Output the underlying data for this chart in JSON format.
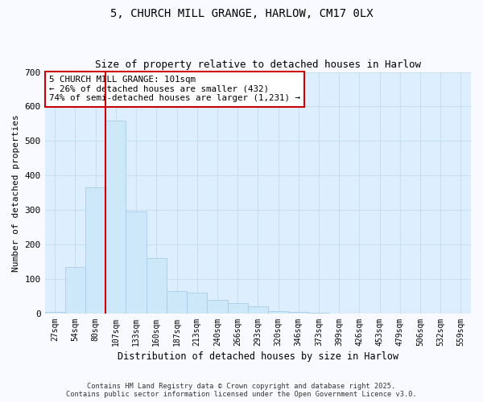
{
  "title_line1": "5, CHURCH MILL GRANGE, HARLOW, CM17 0LX",
  "title_line2": "Size of property relative to detached houses in Harlow",
  "xlabel": "Distribution of detached houses by size in Harlow",
  "ylabel": "Number of detached properties",
  "bin_labels": [
    "27sqm",
    "54sqm",
    "80sqm",
    "107sqm",
    "133sqm",
    "160sqm",
    "187sqm",
    "213sqm",
    "240sqm",
    "266sqm",
    "293sqm",
    "320sqm",
    "346sqm",
    "373sqm",
    "399sqm",
    "426sqm",
    "453sqm",
    "479sqm",
    "506sqm",
    "532sqm",
    "559sqm"
  ],
  "bar_values": [
    5,
    135,
    365,
    560,
    295,
    160,
    65,
    60,
    40,
    30,
    20,
    8,
    5,
    2,
    0,
    0,
    0,
    0,
    0,
    0,
    0
  ],
  "bar_color": "#cde8f8",
  "bar_edge_color": "#aacce8",
  "red_line_color": "#cc0000",
  "red_line_index": 2.5,
  "annotation_text": "5 CHURCH MILL GRANGE: 101sqm\n← 26% of detached houses are smaller (432)\n74% of semi-detached houses are larger (1,231) →",
  "annotation_box_color": "#ffffff",
  "annotation_box_edge": "#cc0000",
  "ylim": [
    0,
    700
  ],
  "yticks": [
    0,
    100,
    200,
    300,
    400,
    500,
    600,
    700
  ],
  "fig_bg": "#f8faff",
  "plot_bg": "#ddeeff",
  "grid_color": "#c8dff0",
  "footer_line1": "Contains HM Land Registry data © Crown copyright and database right 2025.",
  "footer_line2": "Contains public sector information licensed under the Open Government Licence v3.0."
}
